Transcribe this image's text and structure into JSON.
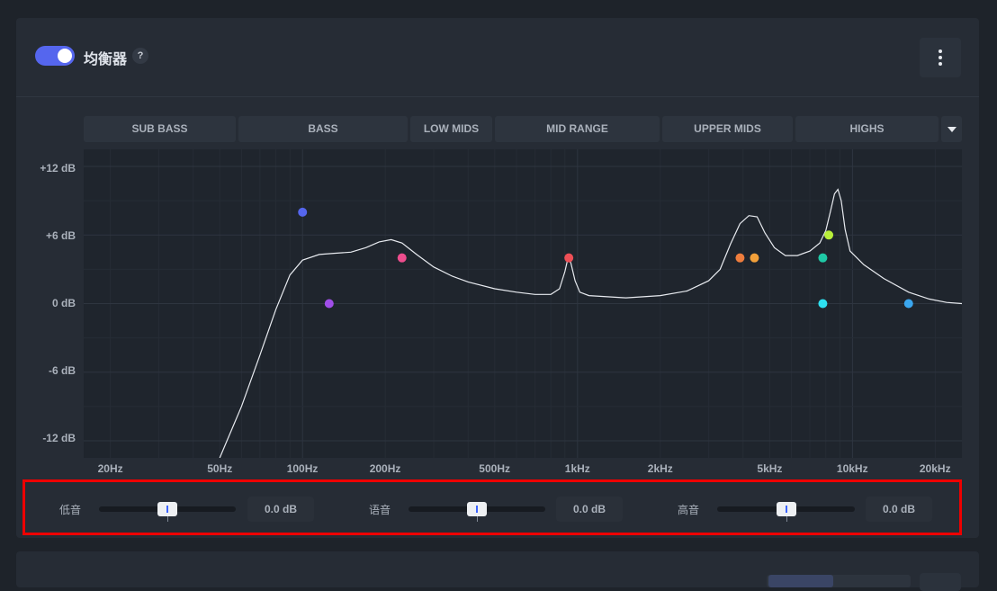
{
  "equalizer": {
    "title": "均衡器",
    "help_label": "?",
    "enabled": true,
    "accent_color": "#5566ee",
    "menu_icon": "more-vertical-icon"
  },
  "bands": [
    "SUB BASS",
    "BASS",
    "LOW MIDS",
    "MID RANGE",
    "UPPER MIDS",
    "HIGHS"
  ],
  "band_dropdown_icon": "caret-down-icon",
  "chart_data": {
    "type": "line",
    "x_scale": "log",
    "xlim": [
      16,
      25000
    ],
    "ylim": [
      -13.5,
      13.5
    ],
    "x_ticks": [
      {
        "label": "20Hz",
        "hz": 20
      },
      {
        "label": "50Hz",
        "hz": 50
      },
      {
        "label": "100Hz",
        "hz": 100
      },
      {
        "label": "200Hz",
        "hz": 200
      },
      {
        "label": "500Hz",
        "hz": 500
      },
      {
        "label": "1kHz",
        "hz": 1000
      },
      {
        "label": "2kHz",
        "hz": 2000
      },
      {
        "label": "5kHz",
        "hz": 5000
      },
      {
        "label": "10kHz",
        "hz": 10000
      },
      {
        "label": "20kHz",
        "hz": 20000
      }
    ],
    "y_ticks": [
      {
        "label": "+12 dB",
        "db": 12
      },
      {
        "label": "+6 dB",
        "db": 6
      },
      {
        "label": "0 dB",
        "db": 0
      },
      {
        "label": "-6 dB",
        "db": -6
      },
      {
        "label": "-12 dB",
        "db": -12
      }
    ],
    "grid": true,
    "curve": [
      [
        50,
        -13.5
      ],
      [
        60,
        -9
      ],
      [
        70,
        -4.5
      ],
      [
        80,
        -0.5
      ],
      [
        90,
        2.5
      ],
      [
        100,
        3.8
      ],
      [
        115,
        4.3
      ],
      [
        130,
        4.4
      ],
      [
        150,
        4.5
      ],
      [
        170,
        4.9
      ],
      [
        190,
        5.4
      ],
      [
        210,
        5.6
      ],
      [
        230,
        5.3
      ],
      [
        260,
        4.3
      ],
      [
        300,
        3.2
      ],
      [
        350,
        2.4
      ],
      [
        400,
        1.9
      ],
      [
        500,
        1.3
      ],
      [
        600,
        1.0
      ],
      [
        700,
        0.8
      ],
      [
        800,
        0.8
      ],
      [
        860,
        1.3
      ],
      [
        900,
        2.8
      ],
      [
        920,
        3.8
      ],
      [
        945,
        3.6
      ],
      [
        980,
        2.0
      ],
      [
        1020,
        1.0
      ],
      [
        1100,
        0.7
      ],
      [
        1500,
        0.5
      ],
      [
        2000,
        0.7
      ],
      [
        2500,
        1.1
      ],
      [
        3000,
        2.0
      ],
      [
        3300,
        3.0
      ],
      [
        3600,
        5.2
      ],
      [
        3900,
        7.0
      ],
      [
        4200,
        7.7
      ],
      [
        4500,
        7.6
      ],
      [
        4800,
        6.2
      ],
      [
        5200,
        4.9
      ],
      [
        5700,
        4.2
      ],
      [
        6300,
        4.2
      ],
      [
        7000,
        4.6
      ],
      [
        7600,
        5.3
      ],
      [
        8000,
        6.4
      ],
      [
        8300,
        8.0
      ],
      [
        8600,
        9.6
      ],
      [
        8850,
        10.0
      ],
      [
        9100,
        9.0
      ],
      [
        9400,
        6.5
      ],
      [
        9800,
        4.6
      ],
      [
        11000,
        3.4
      ],
      [
        13000,
        2.2
      ],
      [
        16000,
        1.0
      ],
      [
        19000,
        0.4
      ],
      [
        22000,
        0.1
      ],
      [
        25000,
        0.0
      ]
    ],
    "points": [
      {
        "hz": 100,
        "db": 8,
        "color": "#5566ee"
      },
      {
        "hz": 125,
        "db": 0,
        "color": "#a04ee8"
      },
      {
        "hz": 230,
        "db": 4,
        "color": "#ee4d8d"
      },
      {
        "hz": 930,
        "db": 4,
        "color": "#ee4f56"
      },
      {
        "hz": 3900,
        "db": 4,
        "color": "#ee7d3d"
      },
      {
        "hz": 4400,
        "db": 4,
        "color": "#f2a03a"
      },
      {
        "hz": 8200,
        "db": 6,
        "color": "#b8ee3a"
      },
      {
        "hz": 7800,
        "db": 4,
        "color": "#1fc9a6"
      },
      {
        "hz": 7800,
        "db": 0,
        "color": "#2ee0f0"
      },
      {
        "hz": 16000,
        "db": 0,
        "color": "#3aa6ee"
      }
    ]
  },
  "tone_controls": [
    {
      "label": "低音",
      "value": "0.0 dB",
      "level": 0.5
    },
    {
      "label": "语音",
      "value": "0.0 dB",
      "level": 0.5
    },
    {
      "label": "高音",
      "value": "0.0 dB",
      "level": 0.5
    }
  ]
}
